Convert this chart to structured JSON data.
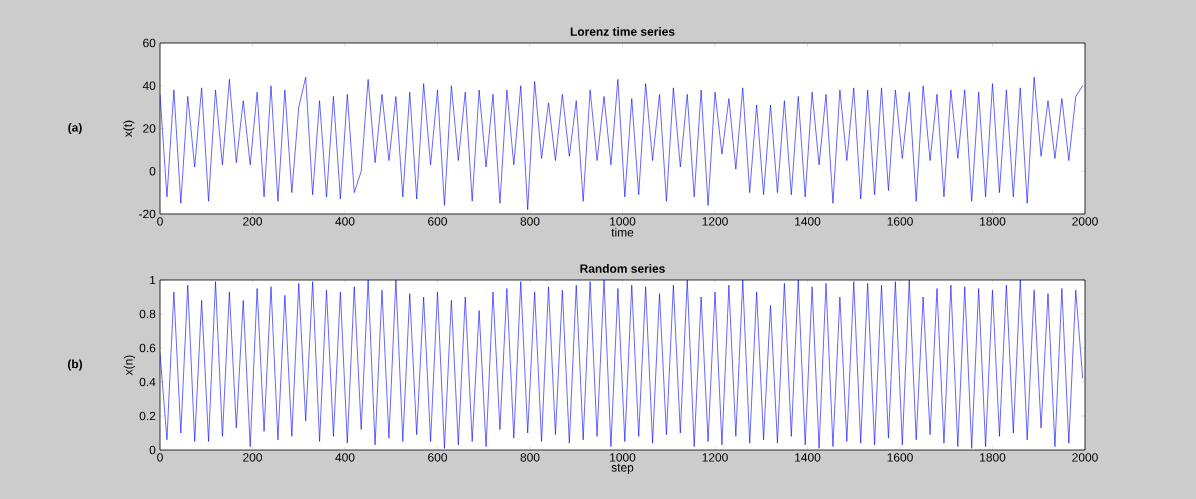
{
  "chart_data": [
    {
      "type": "line",
      "title": "Lorenz time series",
      "xlabel": "time",
      "ylabel": "x(t)",
      "annotations": [
        "(a)"
      ],
      "xlim": [
        0,
        2000
      ],
      "ylim": [
        -20,
        60
      ],
      "xticks": [
        0,
        200,
        400,
        600,
        800,
        1000,
        1200,
        1400,
        1600,
        1800,
        2000
      ],
      "yticks": [
        -20,
        0,
        20,
        40,
        60
      ],
      "series": [
        {
          "color": "#0000ff",
          "x": [
            0,
            15,
            30,
            45,
            60,
            75,
            90,
            105,
            120,
            135,
            150,
            165,
            180,
            195,
            210,
            225,
            240,
            255,
            270,
            285,
            300,
            315,
            330,
            345,
            360,
            375,
            390,
            405,
            420,
            435,
            450,
            465,
            480,
            495,
            510,
            525,
            540,
            555,
            570,
            585,
            600,
            615,
            630,
            645,
            660,
            675,
            690,
            705,
            720,
            735,
            750,
            765,
            780,
            795,
            810,
            825,
            840,
            855,
            870,
            885,
            900,
            915,
            930,
            945,
            960,
            975,
            990,
            1005,
            1020,
            1035,
            1050,
            1065,
            1080,
            1095,
            1110,
            1125,
            1140,
            1155,
            1170,
            1185,
            1200,
            1215,
            1230,
            1245,
            1260,
            1275,
            1290,
            1305,
            1320,
            1335,
            1350,
            1365,
            1380,
            1395,
            1410,
            1425,
            1440,
            1455,
            1470,
            1485,
            1500,
            1515,
            1530,
            1545,
            1560,
            1575,
            1590,
            1605,
            1620,
            1635,
            1650,
            1665,
            1680,
            1695,
            1710,
            1725,
            1740,
            1755,
            1770,
            1785,
            1800,
            1815,
            1830,
            1845,
            1860,
            1875,
            1890,
            1905,
            1920,
            1935,
            1950,
            1965,
            1980,
            1995
          ],
          "values": [
            36,
            -12,
            38,
            -15,
            35,
            2,
            39,
            -14,
            38,
            3,
            43,
            4,
            33,
            3,
            37,
            -12,
            40,
            -14,
            38,
            -10,
            30,
            44,
            -11,
            33,
            -12,
            35,
            -13,
            36,
            -10,
            0,
            43,
            4,
            36,
            5,
            35,
            -12,
            37,
            -13,
            41,
            3,
            38,
            -16,
            40,
            5,
            37,
            -14,
            38,
            2,
            36,
            -15,
            38,
            3,
            40,
            -18,
            42,
            6,
            32,
            5,
            36,
            7,
            33,
            -14,
            38,
            5,
            35,
            3,
            43,
            -12,
            34,
            -11,
            41,
            5,
            36,
            -14,
            39,
            2,
            36,
            -12,
            38,
            -16,
            37,
            8,
            34,
            1,
            39,
            -10,
            31,
            -11,
            31,
            -10,
            33,
            -11,
            35,
            -12,
            37,
            3,
            36,
            -15,
            38,
            5,
            39,
            -13,
            38,
            -11,
            39,
            -9,
            38,
            6,
            37,
            -14,
            40,
            5,
            36,
            -12,
            38,
            6,
            38,
            -14,
            37,
            -12,
            41,
            -10,
            38,
            -12,
            39,
            -15,
            44,
            7,
            33,
            6,
            34,
            5,
            35,
            40
          ]
        }
      ]
    },
    {
      "type": "line",
      "title": "Random series",
      "xlabel": "step",
      "ylabel": "x(n)",
      "annotations": [
        "(b)"
      ],
      "xlim": [
        0,
        2000
      ],
      "ylim": [
        0,
        1
      ],
      "xticks": [
        0,
        200,
        400,
        600,
        800,
        1000,
        1200,
        1400,
        1600,
        1800,
        2000
      ],
      "yticks": [
        0,
        0.2,
        0.4,
        0.6,
        0.8,
        1
      ],
      "series": [
        {
          "color": "#0000ff",
          "x": [
            0,
            15,
            30,
            45,
            60,
            75,
            90,
            105,
            120,
            135,
            150,
            165,
            180,
            195,
            210,
            225,
            240,
            255,
            270,
            285,
            300,
            315,
            330,
            345,
            360,
            375,
            390,
            405,
            420,
            435,
            450,
            465,
            480,
            495,
            510,
            525,
            540,
            555,
            570,
            585,
            600,
            615,
            630,
            645,
            660,
            675,
            690,
            705,
            720,
            735,
            750,
            765,
            780,
            795,
            810,
            825,
            840,
            855,
            870,
            885,
            900,
            915,
            930,
            945,
            960,
            975,
            990,
            1005,
            1020,
            1035,
            1050,
            1065,
            1080,
            1095,
            1110,
            1125,
            1140,
            1155,
            1170,
            1185,
            1200,
            1215,
            1230,
            1245,
            1260,
            1275,
            1290,
            1305,
            1320,
            1335,
            1350,
            1365,
            1380,
            1395,
            1410,
            1425,
            1440,
            1455,
            1470,
            1485,
            1500,
            1515,
            1530,
            1545,
            1560,
            1575,
            1590,
            1605,
            1620,
            1635,
            1650,
            1665,
            1680,
            1695,
            1710,
            1725,
            1740,
            1755,
            1770,
            1785,
            1800,
            1815,
            1830,
            1845,
            1860,
            1875,
            1890,
            1905,
            1920,
            1935,
            1950,
            1965,
            1980,
            1995
          ],
          "values": [
            0.57,
            0.06,
            0.93,
            0.1,
            0.97,
            0.05,
            0.88,
            0.05,
            0.99,
            0.08,
            0.93,
            0.13,
            0.88,
            0.02,
            0.95,
            0.11,
            0.96,
            0.06,
            0.91,
            0.08,
            0.98,
            0.17,
            0.99,
            0.05,
            0.94,
            0.08,
            0.93,
            0.04,
            0.96,
            0.12,
            1.0,
            0.03,
            0.94,
            0.07,
            1.0,
            0.05,
            0.92,
            0.09,
            0.9,
            0.05,
            0.93,
            0.01,
            0.88,
            0.03,
            0.9,
            0.05,
            0.82,
            0.02,
            0.93,
            0.12,
            0.95,
            0.07,
            0.99,
            0.1,
            0.93,
            0.05,
            0.96,
            0.09,
            0.94,
            0.04,
            0.97,
            0.06,
            0.99,
            0.08,
            1.0,
            0.02,
            0.95,
            0.05,
            0.97,
            0.08,
            0.96,
            0.04,
            0.92,
            0.09,
            0.97,
            0.1,
            1.0,
            0.02,
            0.9,
            0.05,
            0.93,
            0.03,
            0.97,
            0.08,
            1.0,
            0.04,
            0.93,
            0.06,
            0.85,
            0.04,
            0.98,
            0.08,
            1.0,
            0.03,
            0.96,
            0.01,
            0.98,
            0.02,
            0.9,
            0.05,
            0.99,
            0.04,
            0.98,
            0.03,
            0.97,
            0.07,
            0.99,
            0.03,
            1.0,
            0.06,
            0.9,
            0.09,
            0.95,
            0.04,
            0.97,
            0.02,
            0.96,
            0.01,
            0.95,
            0.02,
            0.94,
            0.08,
            0.97,
            0.1,
            1.0,
            0.06,
            0.94,
            0.13,
            0.92,
            0.02,
            0.95,
            0.04,
            0.94,
            0.42
          ]
        }
      ]
    }
  ]
}
